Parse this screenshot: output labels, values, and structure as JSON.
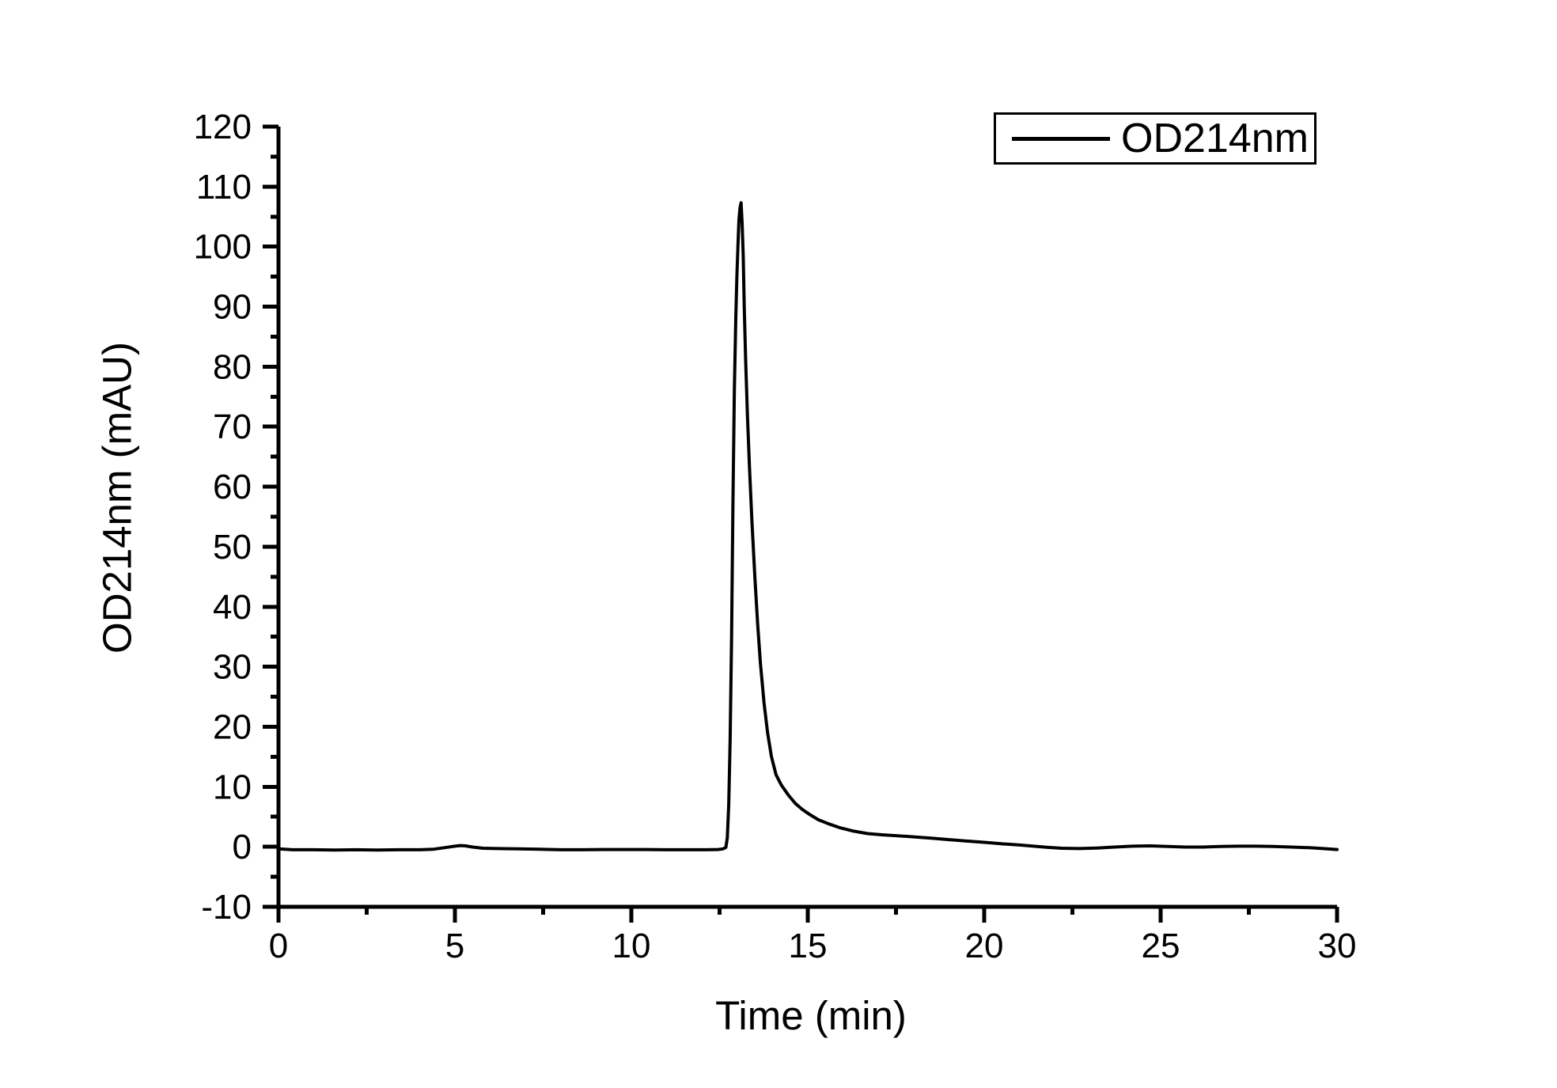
{
  "figure": {
    "background_color": "#ffffff",
    "foreground_color": "#000000"
  },
  "chart_data": {
    "type": "line",
    "title": "",
    "xlabel": "Time (min)",
    "ylabel": "OD214nm (mAU)",
    "xlim": [
      0,
      30
    ],
    "ylim": [
      -10,
      120
    ],
    "x_major_ticks": [
      0,
      5,
      10,
      15,
      20,
      25,
      30
    ],
    "x_minor_ticks": [
      2.5,
      7.5,
      12.5,
      17.5,
      22.5,
      27.5
    ],
    "y_major_ticks": [
      -10,
      0,
      10,
      20,
      30,
      40,
      50,
      60,
      70,
      80,
      90,
      100,
      110,
      120
    ],
    "y_minor_ticks": [
      -5,
      5,
      15,
      25,
      35,
      45,
      55,
      65,
      75,
      85,
      95,
      105,
      115
    ],
    "grid": false,
    "legend": {
      "position": "top-right",
      "entries": [
        {
          "label": "OD214nm",
          "color": "#000000"
        }
      ]
    },
    "series": [
      {
        "name": "OD214nm",
        "color": "#000000",
        "points": [
          [
            0,
            -0.35
          ],
          [
            0.4,
            -0.5
          ],
          [
            1,
            -0.5
          ],
          [
            1.6,
            -0.55
          ],
          [
            2.2,
            -0.5
          ],
          [
            2.8,
            -0.55
          ],
          [
            3.4,
            -0.5
          ],
          [
            4,
            -0.5
          ],
          [
            4.4,
            -0.4
          ],
          [
            4.7,
            -0.15
          ],
          [
            5,
            0.1
          ],
          [
            5.15,
            0.2
          ],
          [
            5.3,
            0.15
          ],
          [
            5.5,
            -0.05
          ],
          [
            5.8,
            -0.25
          ],
          [
            6.2,
            -0.3
          ],
          [
            6.8,
            -0.35
          ],
          [
            7.4,
            -0.4
          ],
          [
            8,
            -0.5
          ],
          [
            8.6,
            -0.5
          ],
          [
            9.2,
            -0.45
          ],
          [
            9.8,
            -0.45
          ],
          [
            10.4,
            -0.45
          ],
          [
            11,
            -0.5
          ],
          [
            11.6,
            -0.5
          ],
          [
            12.1,
            -0.5
          ],
          [
            12.45,
            -0.45
          ],
          [
            12.6,
            -0.35
          ],
          [
            12.68,
            -0.1
          ],
          [
            12.72,
            1.5
          ],
          [
            12.76,
            7
          ],
          [
            12.8,
            18
          ],
          [
            12.84,
            35
          ],
          [
            12.88,
            57
          ],
          [
            12.92,
            76
          ],
          [
            12.96,
            88
          ],
          [
            12.99,
            95
          ],
          [
            13.02,
            100
          ],
          [
            13.05,
            104.5
          ],
          [
            13.08,
            106.5
          ],
          [
            13.11,
            107.3
          ],
          [
            13.14,
            104
          ],
          [
            13.17,
            98.5
          ],
          [
            13.2,
            90
          ],
          [
            13.24,
            81
          ],
          [
            13.29,
            72
          ],
          [
            13.35,
            63
          ],
          [
            13.42,
            54
          ],
          [
            13.5,
            45
          ],
          [
            13.58,
            37
          ],
          [
            13.66,
            30.5
          ],
          [
            13.76,
            24
          ],
          [
            13.86,
            19
          ],
          [
            13.97,
            15
          ],
          [
            14.1,
            12
          ],
          [
            14.25,
            10.3
          ],
          [
            14.45,
            8.6
          ],
          [
            14.65,
            7.2
          ],
          [
            14.85,
            6.2
          ],
          [
            15.05,
            5.4
          ],
          [
            15.3,
            4.5
          ],
          [
            15.6,
            3.8
          ],
          [
            15.9,
            3.2
          ],
          [
            16.3,
            2.6
          ],
          [
            16.7,
            2.2
          ],
          [
            17.1,
            2
          ],
          [
            17.5,
            1.85
          ],
          [
            18,
            1.65
          ],
          [
            18.5,
            1.45
          ],
          [
            19,
            1.2
          ],
          [
            19.5,
            0.95
          ],
          [
            20,
            0.75
          ],
          [
            20.5,
            0.5
          ],
          [
            21,
            0.3
          ],
          [
            21.4,
            0.1
          ],
          [
            21.8,
            -0.1
          ],
          [
            22.2,
            -0.25
          ],
          [
            22.7,
            -0.3
          ],
          [
            23.2,
            -0.2
          ],
          [
            23.7,
            -0.05
          ],
          [
            24.2,
            0.1
          ],
          [
            24.7,
            0.15
          ],
          [
            25.2,
            0.05
          ],
          [
            25.7,
            -0.05
          ],
          [
            26.2,
            -0.05
          ],
          [
            26.7,
            0.05
          ],
          [
            27.2,
            0.1
          ],
          [
            27.7,
            0.1
          ],
          [
            28.2,
            0.05
          ],
          [
            28.7,
            -0.05
          ],
          [
            29.2,
            -0.15
          ],
          [
            29.6,
            -0.3
          ],
          [
            30,
            -0.45
          ]
        ]
      }
    ]
  }
}
